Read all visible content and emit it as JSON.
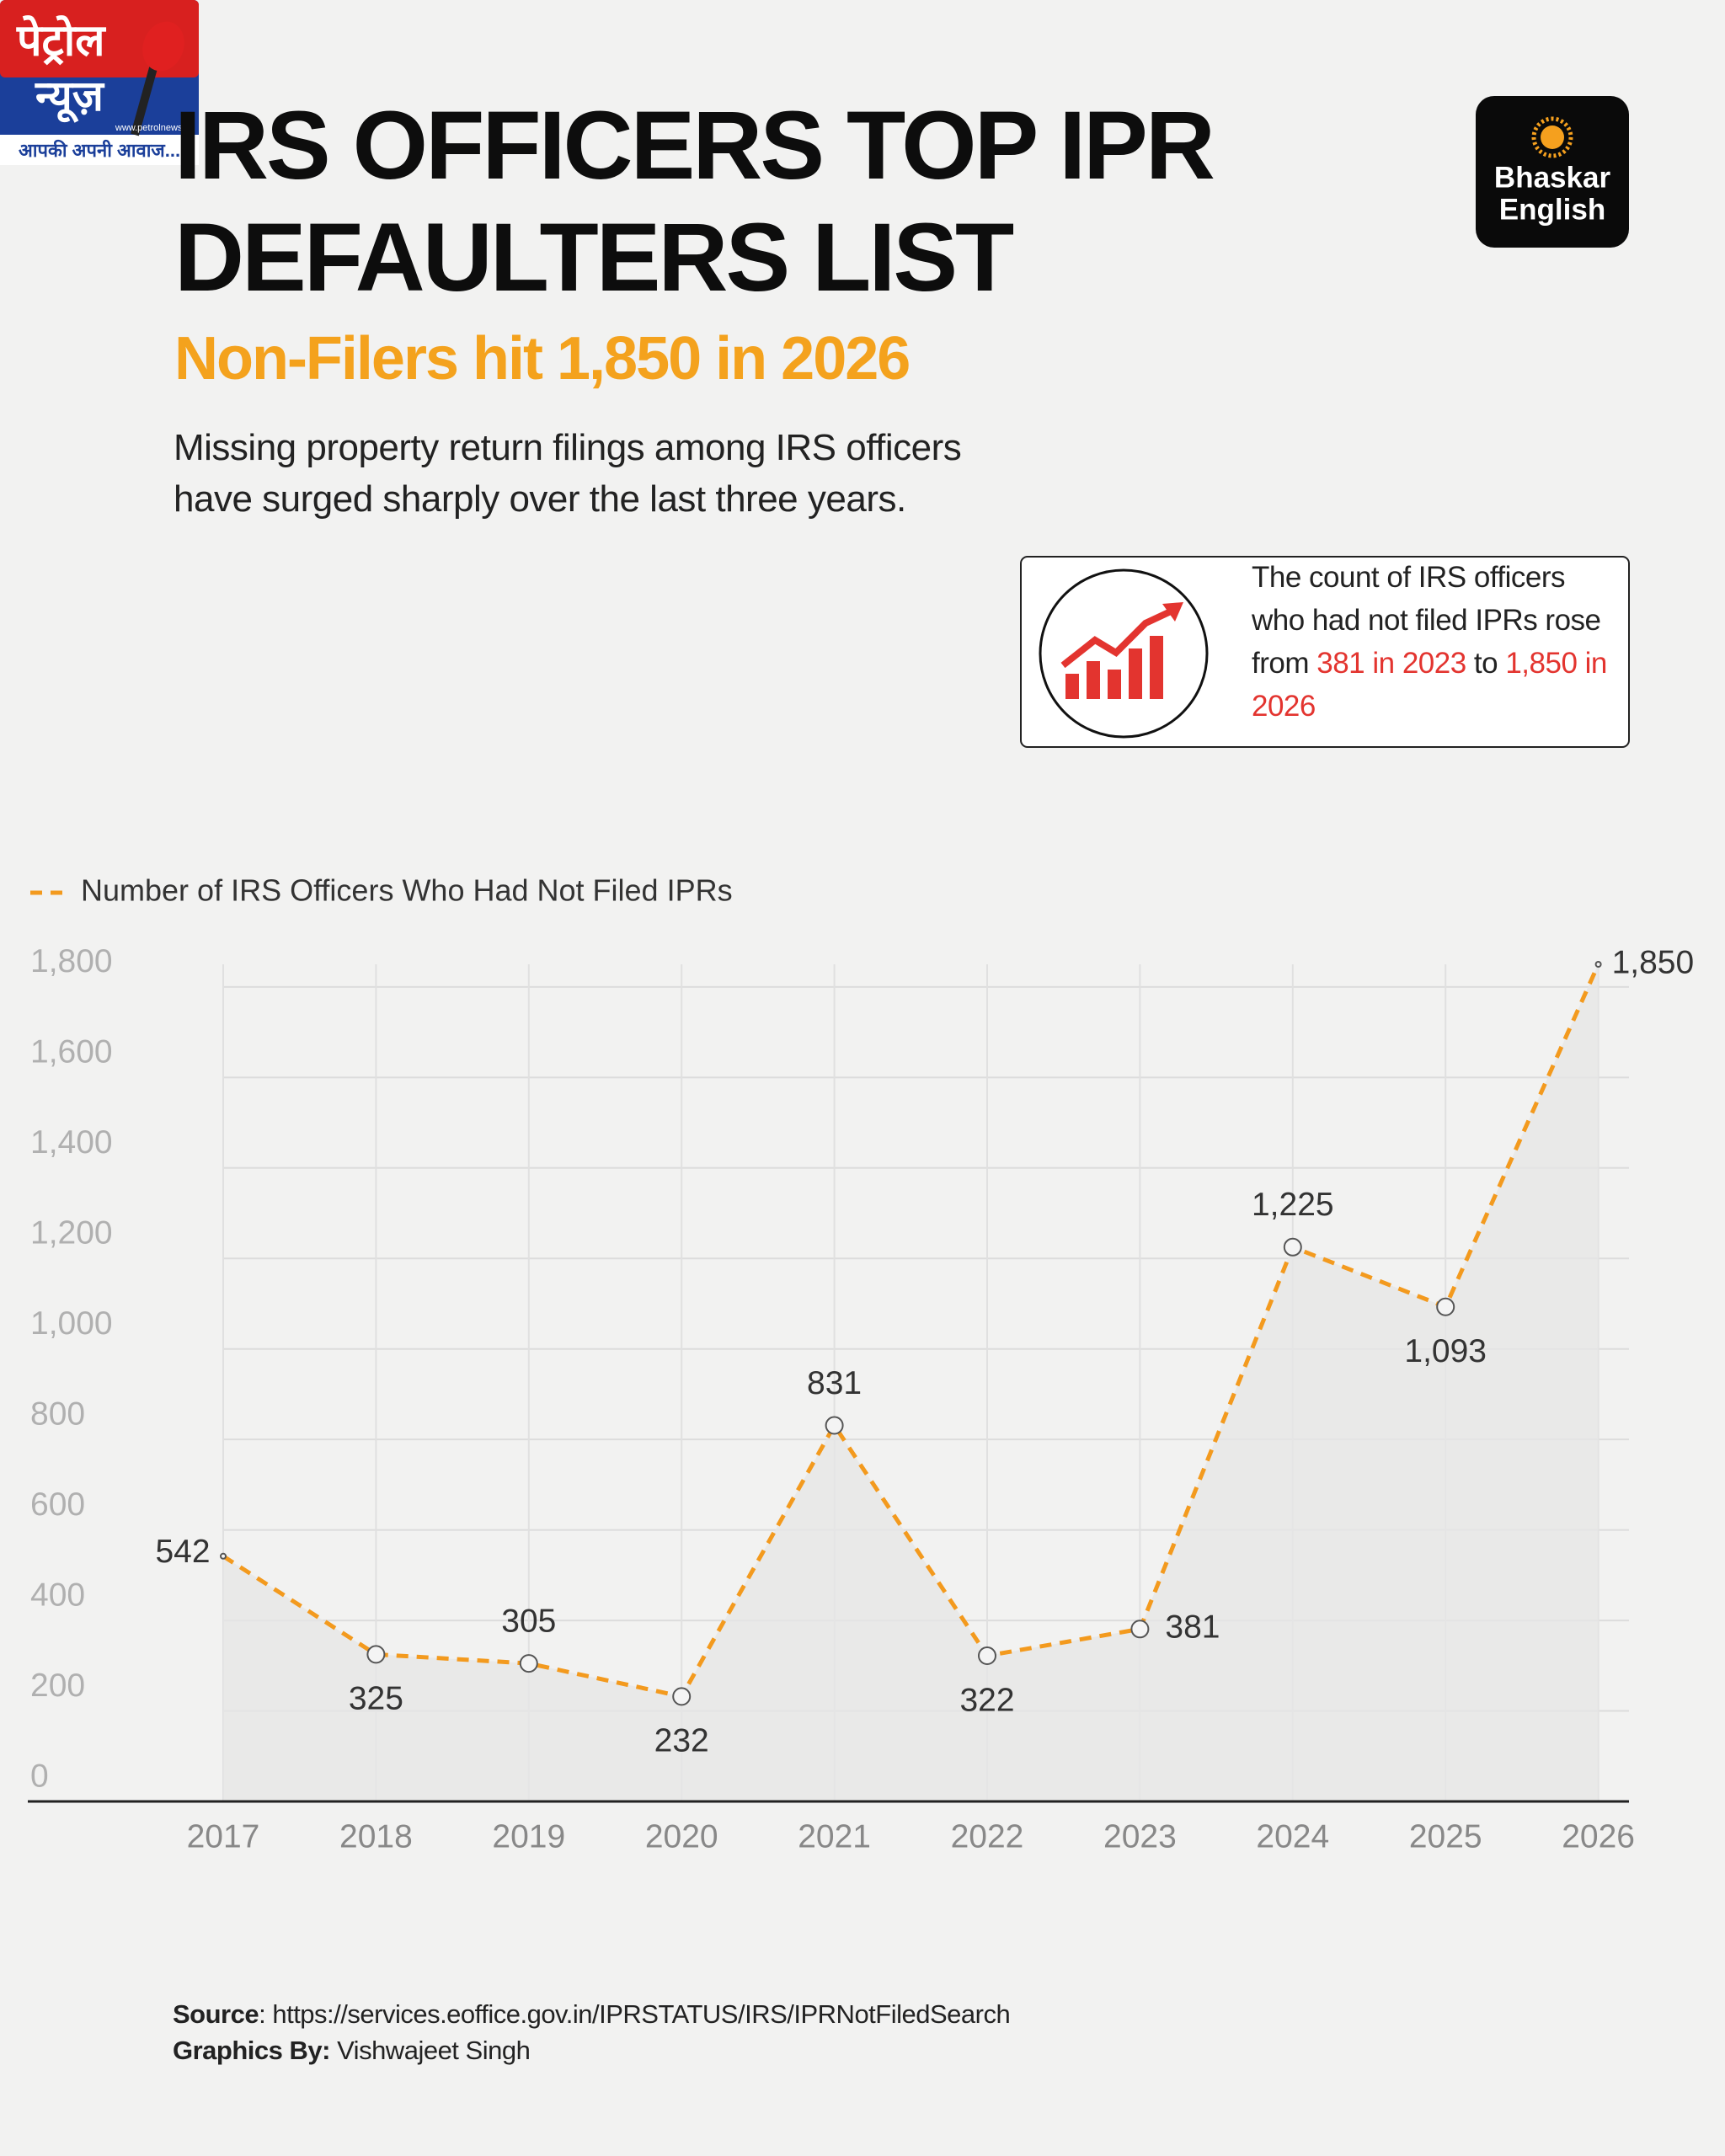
{
  "chart_data": {
    "type": "line",
    "title": "IRS OFFICERS TOP IPR DEFAULTERS LIST",
    "subtitle": "Non-Filers hit 1,850 in 2026",
    "description": [
      "Missing property return filings among IRS officers",
      "have surged sharply over the last three years."
    ],
    "categories": [
      "2017",
      "2018",
      "2019",
      "2020",
      "2021",
      "2022",
      "2023",
      "2024",
      "2025",
      "2026"
    ],
    "series": [
      {
        "name": "Number of IRS Officers Who Had Not Filed IPRs",
        "color": "#f39a1e",
        "values": [
          542,
          325,
          305,
          232,
          831,
          322,
          381,
          1225,
          1093,
          1850
        ],
        "value_labels": [
          "542",
          "325",
          "305",
          "232",
          "831",
          "322",
          "381",
          "1,225",
          "1,093",
          "1,850"
        ]
      }
    ],
    "ylim": [
      0,
      1850
    ],
    "yticks": [
      0,
      200,
      400,
      600,
      800,
      {
        "value": 1000,
        "label": "1,000"
      },
      {
        "value": 1200,
        "label": "1,200"
      },
      {
        "value": 1400,
        "label": "1,400"
      },
      {
        "value": 1600,
        "label": "1,600"
      },
      {
        "value": 1800,
        "label": "1,800"
      }
    ],
    "grid": true
  },
  "logos": {
    "petrol_line1": "पेट्रोल",
    "petrol_line2": "न्यूज़",
    "petrol_url": "www.petrolnews.in",
    "petrol_tagline": "आपकी अपनी आवाज...",
    "bhaskar_line1": "Bhaskar",
    "bhaskar_line2": "English"
  },
  "callout": {
    "text_before": "The count of IRS officers who had not filed IPRs rose from ",
    "highlight_1": "381 in 2023",
    "text_middle": " to ",
    "highlight_2": "1,850 in 2026"
  },
  "footer": {
    "source_label": "Source",
    "source_text": ": https://services.eoffice.gov.in/IPRSTATUS/IRS/IPRNotFiledSearch",
    "credit_label": "Graphics By:",
    "credit_text": " Vishwajeet Singh"
  }
}
